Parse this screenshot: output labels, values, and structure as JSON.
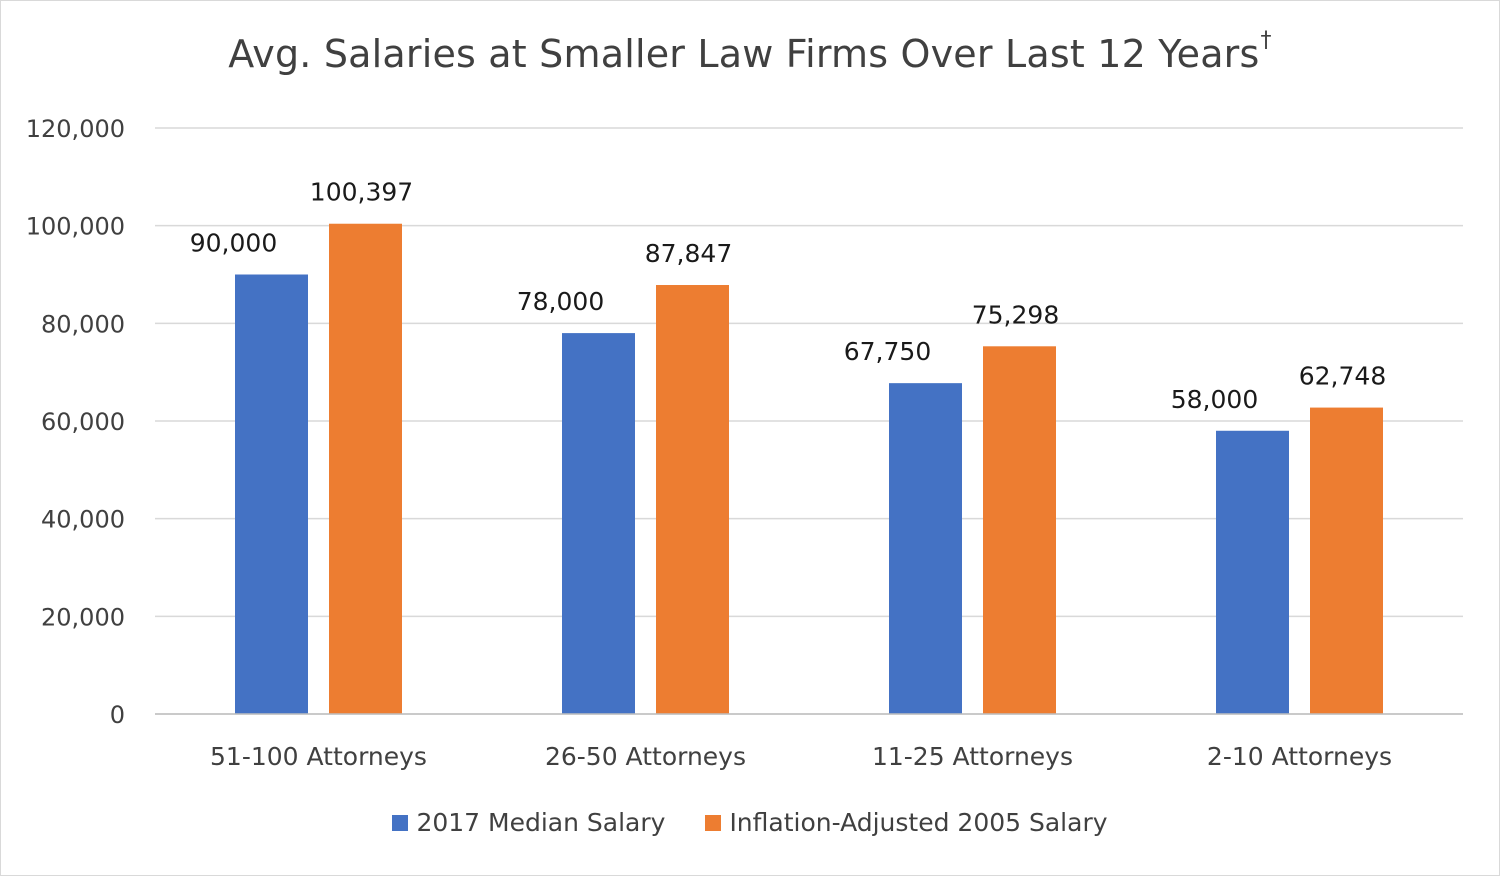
{
  "chart_data": {
    "type": "bar",
    "title": "Avg. Salaries at Smaller Law Firms Over Last 12 Years",
    "title_mark": "†",
    "categories": [
      "51-100 Attorneys",
      "26-50 Attorneys",
      "11-25 Attorneys",
      "2-10 Attorneys"
    ],
    "series": [
      {
        "name": "2017 Median Salary",
        "color": "#4472c4",
        "values": [
          90000,
          78000,
          67750,
          58000
        ],
        "labels": [
          "90,000",
          "78,000",
          "67,750",
          "58,000"
        ]
      },
      {
        "name": "Inflation-Adjusted 2005 Salary",
        "color": "#ed7d31",
        "values": [
          100397,
          87847,
          75298,
          62748
        ],
        "labels": [
          "100,397",
          "87,847",
          "75,298",
          "62,748"
        ]
      }
    ],
    "ylim": [
      0,
      120000
    ],
    "yticks": [
      0,
      20000,
      40000,
      60000,
      80000,
      100000,
      120000
    ],
    "ytick_labels": [
      "0",
      "20,000",
      "40,000",
      "60,000",
      "80,000",
      "100,000",
      "120,000"
    ],
    "grid": true,
    "legend_position": "bottom"
  }
}
